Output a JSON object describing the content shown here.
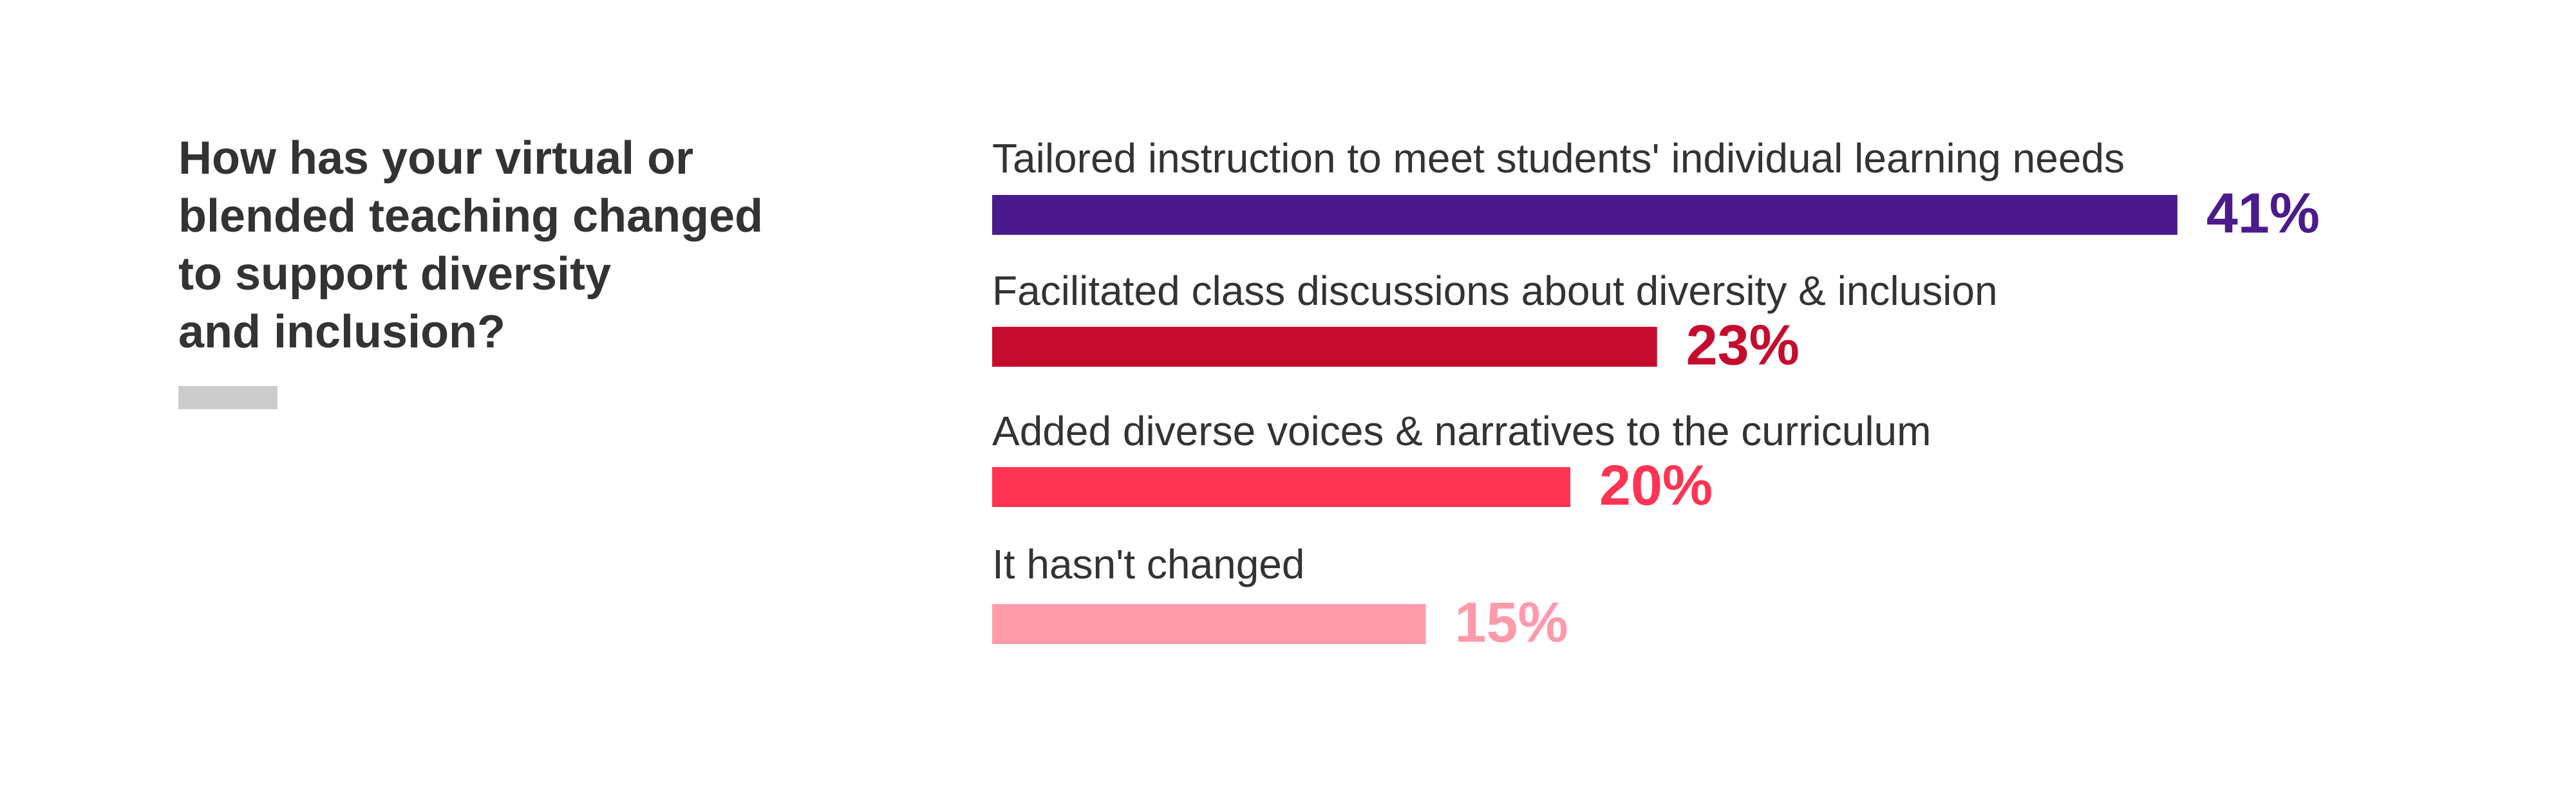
{
  "chart_data": {
    "type": "hbar",
    "title": "How has your virtual or blended teaching changed to support diversity and inclusion?",
    "categories": [
      "Tailored instruction to meet students' individual learning needs",
      "Facilitated class discussions about diversity & inclusion",
      "Added diverse voices & narratives to the curriculum",
      "It hasn't changed"
    ],
    "values": [
      41,
      23,
      20,
      15
    ],
    "value_labels": [
      "41%",
      "23%",
      "20%",
      "15%"
    ],
    "colors": [
      "#4b1a8c",
      "#c50c2e",
      "#ff3352",
      "#ff9aab"
    ]
  }
}
